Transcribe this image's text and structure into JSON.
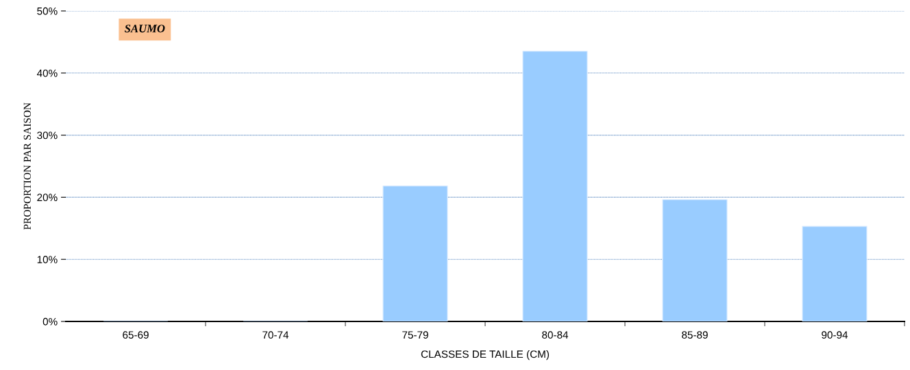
{
  "chart_data": {
    "type": "bar",
    "xlabel": "CLASSES DE TAILLE (CM)",
    "ylabel": "PROPORTION PAR SAISON",
    "categories": [
      "65-69",
      "70-74",
      "75-79",
      "80-84",
      "85-89",
      "90-94"
    ],
    "values": [
      0,
      0,
      21.8,
      43.5,
      19.6,
      15.3
    ],
    "color": "#99ccff",
    "ylim": [
      0,
      50
    ],
    "yticks": [
      {
        "value": 0,
        "label": "0%"
      },
      {
        "value": 10,
        "label": "10%"
      },
      {
        "value": 20,
        "label": "20%"
      },
      {
        "value": 30,
        "label": "30%"
      },
      {
        "value": 40,
        "label": "40%"
      },
      {
        "value": 50,
        "label": "50%"
      }
    ],
    "grid": "y",
    "annotations": [
      "SAUMO"
    ]
  }
}
